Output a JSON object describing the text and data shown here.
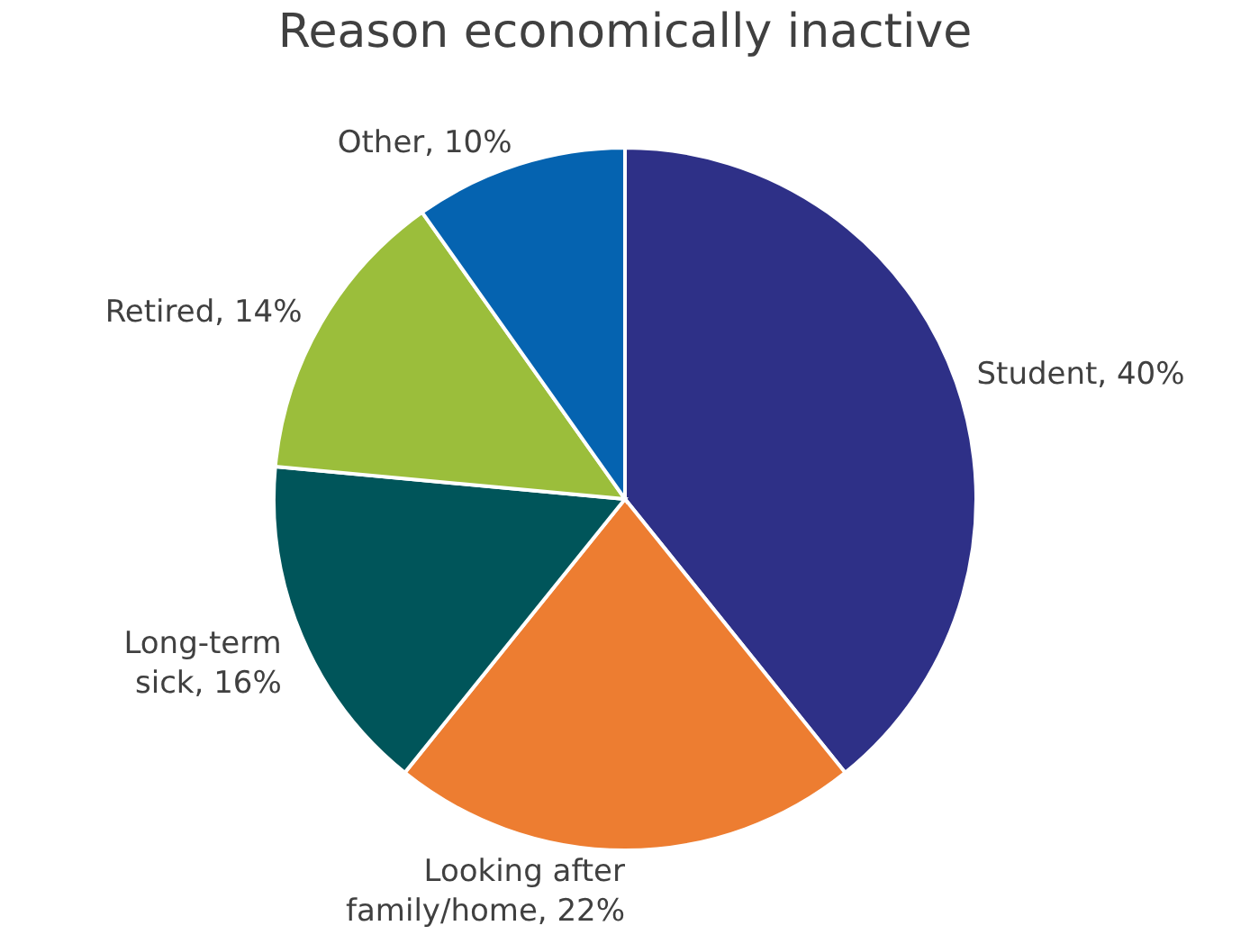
{
  "chart_data": {
    "type": "pie",
    "title": "Reason economically inactive",
    "categories": [
      "Student",
      "Looking after family/home",
      "Long-term sick",
      "Retired",
      "Other"
    ],
    "values": [
      40,
      22,
      16,
      14,
      10
    ],
    "colors": [
      "#2e3087",
      "#ed7d31",
      "#00555a",
      "#9bbe3b",
      "#0563b0"
    ],
    "value_labels": [
      "40%",
      "22%",
      "16%",
      "14%",
      "10%"
    ],
    "legend": false
  }
}
